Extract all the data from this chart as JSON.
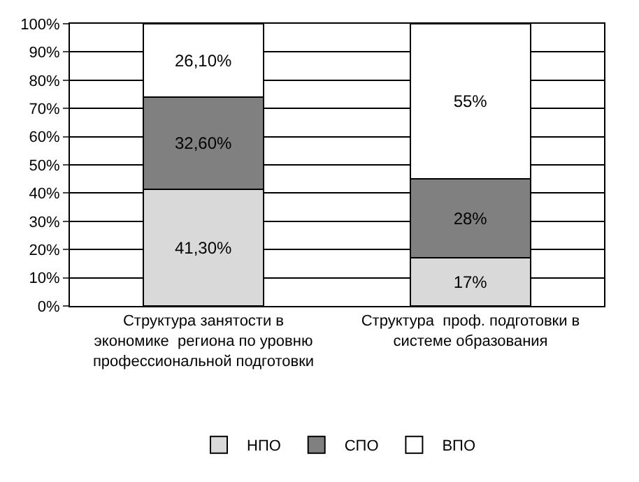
{
  "chart_data": {
    "type": "bar",
    "stacked": true,
    "categories": [
      "Структура занятости в экономике  региона по уровню профессиональной подготовки",
      "Структура  проф. подготовки в системе образования"
    ],
    "series": [
      {
        "name": "НПО",
        "color": "#d9d9d9",
        "values": [
          41.3,
          17
        ],
        "value_labels": [
          "41,30%",
          "17%"
        ]
      },
      {
        "name": "СПО",
        "color": "#808080",
        "values": [
          32.6,
          28
        ],
        "value_labels": [
          "32,60%",
          "28%"
        ]
      },
      {
        "name": "ВПО",
        "color": "#ffffff",
        "values": [
          26.1,
          55
        ],
        "value_labels": [
          "26,10%",
          "55%"
        ]
      }
    ],
    "ylim": [
      0,
      100
    ],
    "yticks": [
      {
        "value": 0,
        "label": "0%"
      },
      {
        "value": 10,
        "label": "10%"
      },
      {
        "value": 20,
        "label": "20%"
      },
      {
        "value": 30,
        "label": "30%"
      },
      {
        "value": 40,
        "label": "40%"
      },
      {
        "value": 50,
        "label": "50%"
      },
      {
        "value": 60,
        "label": "60%"
      },
      {
        "value": 70,
        "label": "70%"
      },
      {
        "value": 80,
        "label": "80%"
      },
      {
        "value": 90,
        "label": "90%"
      },
      {
        "value": 100,
        "label": "100%"
      }
    ],
    "grid": "y",
    "legend": "bottom"
  }
}
